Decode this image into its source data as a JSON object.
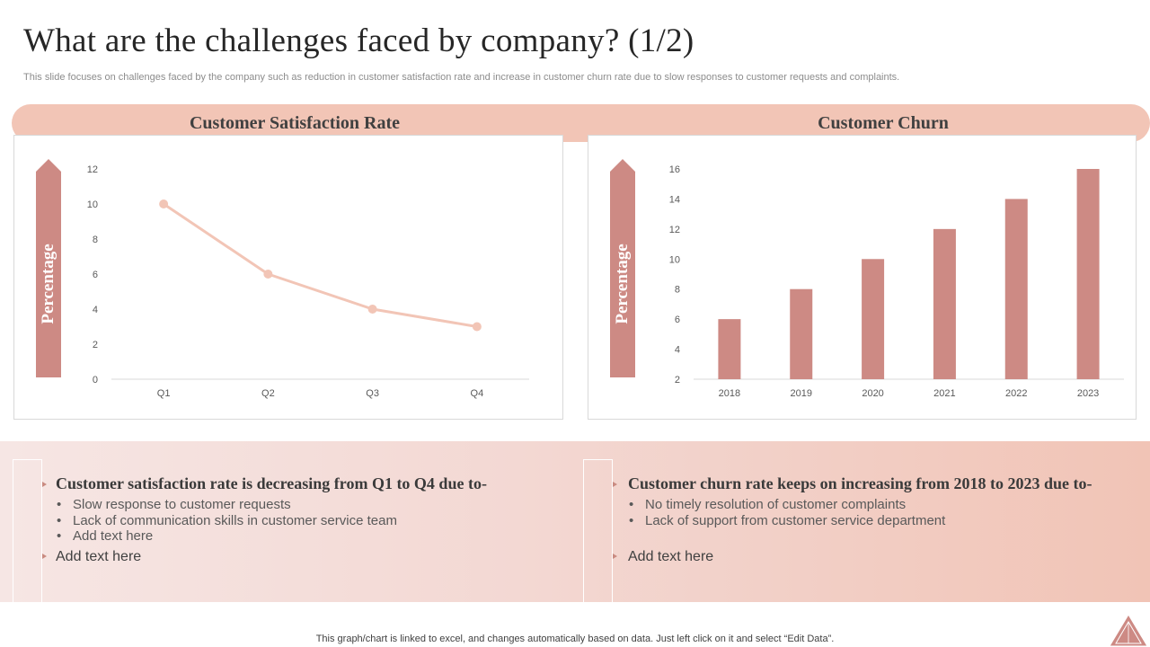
{
  "slide": {
    "title": "What are the challenges faced by company? (1/2)",
    "subtitle": "This slide focuses on challenges faced by the company such as reduction in customer satisfaction rate and increase in customer churn rate due to slow responses to customer requests and complaints.",
    "footer": "This graph/chart is linked to excel,  and changes automatically based on data. Just left click on it and select “Edit Data”."
  },
  "headers": {
    "left": "Customer Satisfaction Rate",
    "right": "Customer Churn"
  },
  "colors": {
    "accent_pink": "#f2c5b6",
    "bar": "#cd8a84",
    "line": "#f2c5b6",
    "arrow": "#cd8a84"
  },
  "chart_data": [
    {
      "type": "line",
      "title": "Customer Satisfaction Rate",
      "ylabel": "Percentage",
      "categories": [
        "Q1",
        "Q2",
        "Q3",
        "Q4"
      ],
      "values": [
        10,
        6,
        4,
        3
      ],
      "ylim": [
        0,
        12
      ],
      "yticks": [
        0,
        2,
        4,
        6,
        8,
        10,
        12
      ],
      "grid": false
    },
    {
      "type": "bar",
      "title": "Customer Churn",
      "ylabel": "Percentage",
      "categories": [
        "2018",
        "2019",
        "2020",
        "2021",
        "2022",
        "2023"
      ],
      "values": [
        6,
        8,
        10,
        12,
        14,
        16
      ],
      "ylim": [
        2,
        16
      ],
      "yticks": [
        2,
        4,
        6,
        8,
        10,
        12,
        14,
        16
      ],
      "grid": false
    }
  ],
  "notes": {
    "left": {
      "heading": "Customer satisfaction rate is decreasing from Q1 to Q4 due to-",
      "bullets": [
        "Slow response to customer requests",
        "Lack of communication skills in customer service team",
        "Add text here"
      ],
      "add_text": "Add text here"
    },
    "right": {
      "heading": "Customer churn rate keeps on increasing from 2018 to 2023 due to-",
      "bullets": [
        "No timely resolution of customer complaints",
        "Lack of support from customer service department"
      ],
      "add_text": "Add text here"
    }
  }
}
